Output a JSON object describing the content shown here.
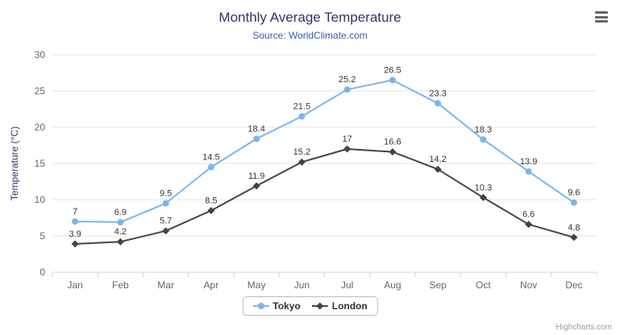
{
  "header": {
    "title": "Monthly Average Temperature",
    "subtitle": "Source: WorldClimate.com"
  },
  "chart_data": {
    "type": "line",
    "title": "Monthly Average Temperature",
    "subtitle": "Source: WorldClimate.com",
    "categories": [
      "Jan",
      "Feb",
      "Mar",
      "Apr",
      "May",
      "Jun",
      "Jul",
      "Aug",
      "Sep",
      "Oct",
      "Nov",
      "Dec"
    ],
    "series": [
      {
        "name": "Tokyo",
        "color": "#7cb5ec",
        "marker": "circle",
        "values": [
          7,
          6.9,
          9.5,
          14.5,
          18.4,
          21.5,
          25.2,
          26.5,
          23.3,
          18.3,
          13.9,
          9.6
        ]
      },
      {
        "name": "London",
        "color": "#434348",
        "marker": "diamond",
        "values": [
          3.9,
          4.2,
          5.7,
          8.5,
          11.9,
          15.2,
          17,
          16.6,
          14.2,
          10.3,
          6.6,
          4.8
        ]
      }
    ],
    "xlabel": "",
    "ylabel": "Temperature (°C)",
    "ylim": [
      0,
      30
    ],
    "ytick_interval": 5,
    "grid": true,
    "legend_position": "bottom",
    "data_labels": true
  },
  "colors": {
    "grid_line": "#e6e6e6",
    "axis_line": "#ccd6eb",
    "axis_label": "#666666",
    "data_label": "#333333",
    "title": "#333366",
    "subtitle": "#335cad",
    "y_axis_title": "#333366"
  },
  "credits": "Highcharts.com",
  "menu": {
    "icon": "hamburger-menu-icon"
  }
}
